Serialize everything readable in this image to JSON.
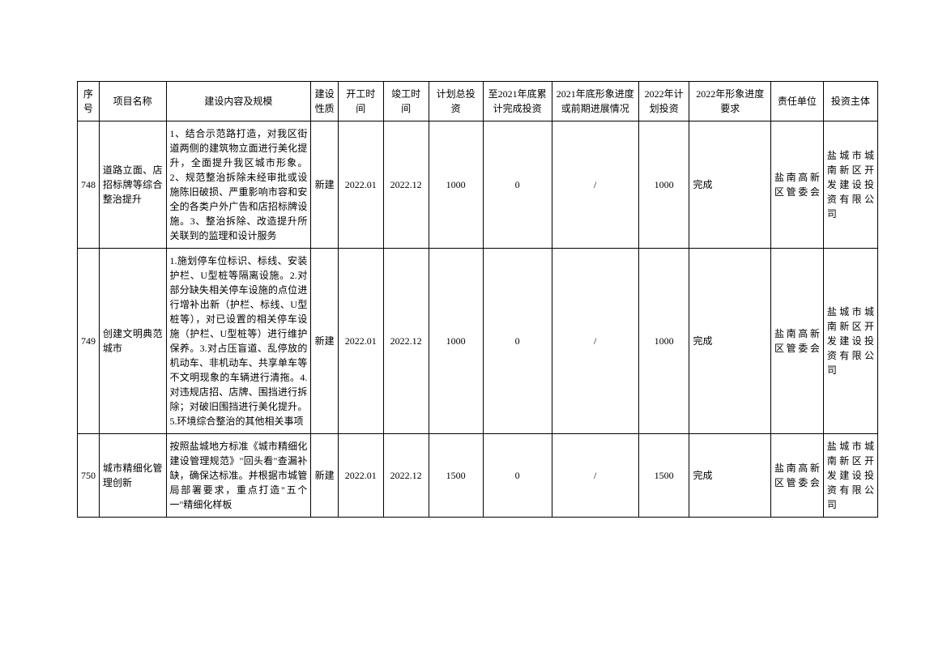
{
  "table": {
    "columns": [
      {
        "key": "seq",
        "label": "序号"
      },
      {
        "key": "name",
        "label": "项目名称"
      },
      {
        "key": "content",
        "label": "建设内容及规模"
      },
      {
        "key": "nature",
        "label": "建设性质"
      },
      {
        "key": "start",
        "label": "开工时间"
      },
      {
        "key": "end",
        "label": "竣工时间"
      },
      {
        "key": "total",
        "label": "计划总投资"
      },
      {
        "key": "cumulative",
        "label": "至2021年底累计完成投资"
      },
      {
        "key": "progress2021",
        "label": "2021年底形象进度或前期进展情况"
      },
      {
        "key": "plan2022",
        "label": "2022年计划投资"
      },
      {
        "key": "req2022",
        "label": "2022年形象进度要求"
      },
      {
        "key": "resp",
        "label": "责任单位"
      },
      {
        "key": "invest",
        "label": "投资主体"
      }
    ],
    "rows": [
      {
        "seq": "748",
        "name": "道路立面、店招标牌等综合整治提升",
        "content": "1、结合示范路打造，对我区街道两侧的建筑物立面进行美化提升，全面提升我区城市形象。2、规范整治拆除未经审批或设施陈旧破损、严重影响市容和安全的各类户外广告和店招标牌设施。3、整治拆除、改造提升所关联到的监理和设计服务",
        "nature": "新建",
        "start": "2022.01",
        "end": "2022.12",
        "total": "1000",
        "cumulative": "0",
        "progress2021": "/",
        "plan2022": "1000",
        "req2022": "完成",
        "resp": "盐南高新区管委会",
        "invest": "盐城市城南新区开发建设投资有限公司"
      },
      {
        "seq": "749",
        "name": "创建文明典范城市",
        "content": "1.施划停车位标识、标线、安装护栏、U型桩等隔离设施。2.对部分缺失相关停车设施的点位进行增补出新（护栏、标线、U型桩等），对已设置的相关停车设施（护栏、U型桩等）进行维护保养。3.对占压盲道、乱停放的机动车、非机动车、共享单车等不文明现象的车辆进行清拖。4.对违规店招、店牌、围挡进行拆除；对破旧围挡进行美化提升。5.环境综合整治的其他相关事项",
        "nature": "新建",
        "start": "2022.01",
        "end": "2022.12",
        "total": "1000",
        "cumulative": "0",
        "progress2021": "/",
        "plan2022": "1000",
        "req2022": "完成",
        "resp": "盐南高新区管委会",
        "invest": "盐城市城南新区开发建设投资有限公司"
      },
      {
        "seq": "750",
        "name": "城市精细化管理创新",
        "content": "按照盐城地方标准《城市精细化建设管理规范》\"回头看\"查漏补缺，确保达标准。并根据市城管局部署要求，重点打造\"五个一\"精细化样板",
        "nature": "新建",
        "start": "2022.01",
        "end": "2022.12",
        "total": "1500",
        "cumulative": "0",
        "progress2021": "/",
        "plan2022": "1500",
        "req2022": "完成",
        "resp": "盐南高新区管委会",
        "invest": "盐城市城南新区开发建设投资有限公司"
      }
    ],
    "styling": {
      "border_color": "#000000",
      "background_color": "#ffffff",
      "font_family": "SimSun",
      "header_fontsize": 12,
      "cell_fontsize": 12,
      "line_height": 1.5
    }
  }
}
